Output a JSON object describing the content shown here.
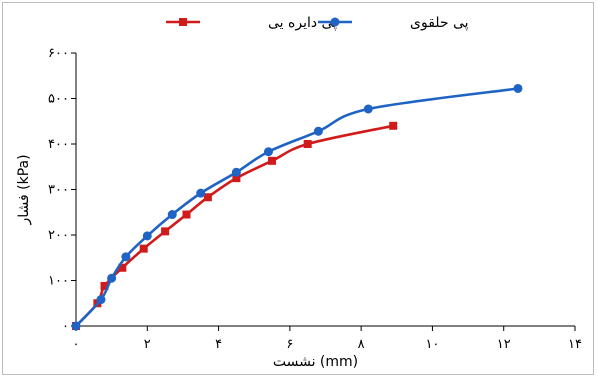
{
  "chart_data": {
    "type": "line",
    "xlabel": "نشست (mm)",
    "ylabel": "فشار (kPa)",
    "xlim": [
      0,
      14
    ],
    "ylim": [
      0,
      600
    ],
    "x_ticks": [
      0,
      2,
      4,
      6,
      8,
      10,
      12,
      14
    ],
    "y_ticks": [
      0,
      100,
      200,
      300,
      400,
      500,
      600
    ],
    "x_tick_labels": [
      "٠",
      "٢",
      "۴",
      "۶",
      "٨",
      "١٠",
      "١٢",
      "١۴"
    ],
    "y_tick_labels": [
      "٠",
      "١٠٠",
      "٢٠٠",
      "٣٠٠",
      "۴٠٠",
      "۵٠٠",
      "۶٠٠"
    ],
    "legend_position": "top",
    "series": [
      {
        "name": "پی دایره یی",
        "color": "#d11b1b",
        "marker": "square",
        "x": [
          0,
          0.6,
          0.8,
          1.3,
          1.9,
          2.5,
          3.1,
          3.7,
          4.5,
          5.5,
          6.5,
          8.9
        ],
        "y": [
          0,
          50,
          88,
          128,
          170,
          208,
          245,
          283,
          325,
          363,
          400,
          440
        ]
      },
      {
        "name": "پی حلقوی",
        "color": "#1f63c4",
        "marker": "circle",
        "x": [
          0,
          0.7,
          1.0,
          1.4,
          2.0,
          2.7,
          3.5,
          4.5,
          5.4,
          6.8,
          8.2,
          12.4
        ],
        "y": [
          0,
          58,
          105,
          152,
          198,
          245,
          292,
          338,
          383,
          428,
          477,
          522
        ]
      }
    ]
  }
}
